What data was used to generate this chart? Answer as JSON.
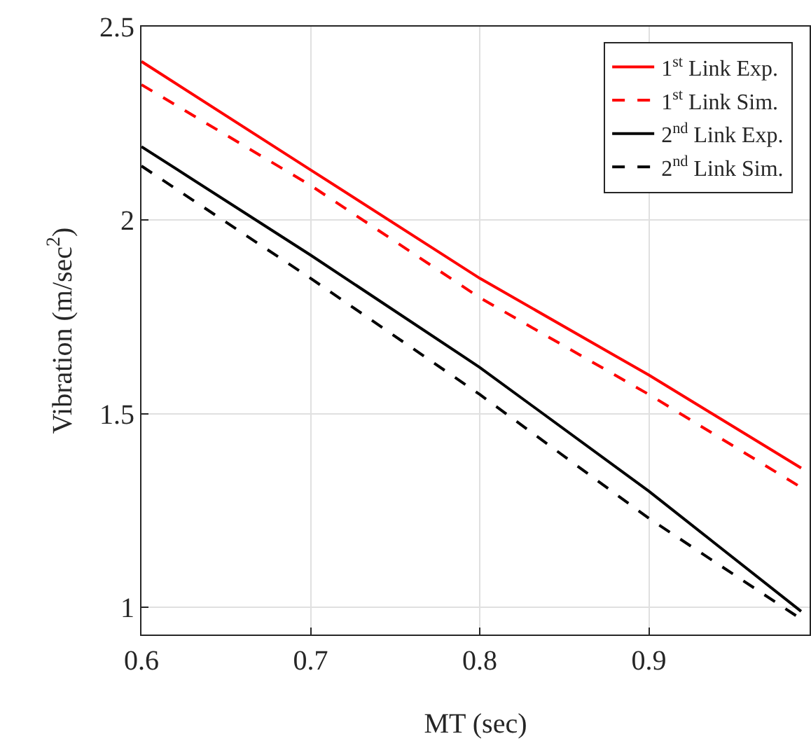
{
  "chart_data": {
    "type": "line",
    "xlabel": "MT (sec)",
    "ylabel": "Vibration (m/sec$^{2}$)",
    "x": [
      0.6,
      0.7,
      0.8,
      0.9,
      0.99
    ],
    "series": [
      {
        "name": "1$^{st}$ Link Exp.",
        "color": "#ff0000",
        "line_style": "solid",
        "values": [
          2.41,
          2.13,
          1.85,
          1.6,
          1.36
        ]
      },
      {
        "name": "1$^{st}$ Link Sim.",
        "color": "#ff0000",
        "line_style": "dashed",
        "values": [
          2.35,
          2.09,
          1.8,
          1.55,
          1.31
        ]
      },
      {
        "name": "2$^{nd}$ Link Exp.",
        "color": "#000000",
        "line_style": "solid",
        "values": [
          2.19,
          1.91,
          1.62,
          1.3,
          0.99
        ]
      },
      {
        "name": "2$^{nd}$ Link Sim.",
        "color": "#000000",
        "line_style": "dashed",
        "values": [
          2.14,
          1.85,
          1.55,
          1.23,
          0.97
        ]
      }
    ],
    "xlim": [
      0.6,
      0.995
    ],
    "ylim": [
      0.93,
      2.5
    ],
    "xticks": [
      0.6,
      0.7,
      0.8,
      0.9
    ],
    "yticks": [
      1,
      1.5,
      2,
      2.5
    ],
    "grid": true,
    "legend": "top right",
    "marker": "none"
  }
}
